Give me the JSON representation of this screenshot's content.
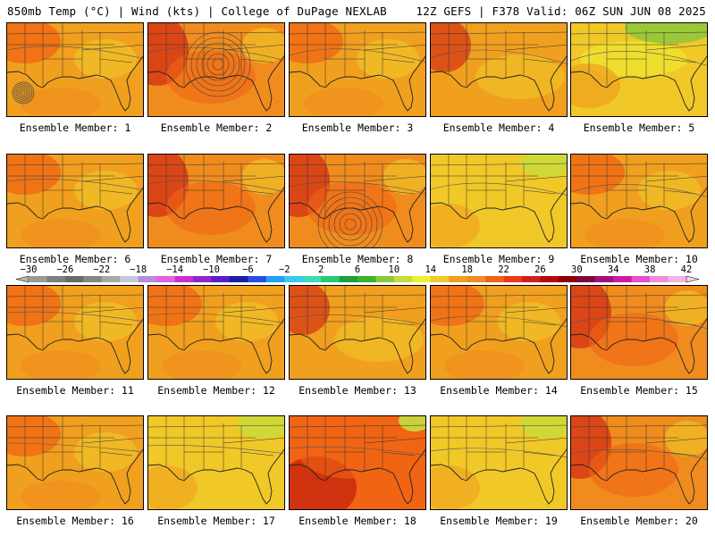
{
  "header": {
    "left": "850mb Temp (°C) | Wind (kts) | College of DuPage NEXLAB",
    "right": "12Z GEFS | F378 Valid: 06Z SUN JUN 08 2025"
  },
  "panels": [
    {
      "caption": "Ensemble Member: 1",
      "variant": "a",
      "hurricane": true
    },
    {
      "caption": "Ensemble Member: 2",
      "variant": "b",
      "low": true
    },
    {
      "caption": "Ensemble Member: 3",
      "variant": "a"
    },
    {
      "caption": "Ensemble Member: 4",
      "variant": "c"
    },
    {
      "caption": "Ensemble Member: 5",
      "variant": "cool"
    },
    {
      "caption": "Ensemble Member: 6",
      "variant": "a"
    },
    {
      "caption": "Ensemble Member: 7",
      "variant": "b"
    },
    {
      "caption": "Ensemble Member: 8",
      "variant": "b",
      "low": true
    },
    {
      "caption": "Ensemble Member: 9",
      "variant": "mild"
    },
    {
      "caption": "Ensemble Member: 10",
      "variant": "a"
    },
    {
      "caption": "Ensemble Member: 11",
      "variant": "a"
    },
    {
      "caption": "Ensemble Member: 12",
      "variant": "a"
    },
    {
      "caption": "Ensemble Member: 13",
      "variant": "c"
    },
    {
      "caption": "Ensemble Member: 14",
      "variant": "a"
    },
    {
      "caption": "Ensemble Member: 15",
      "variant": "b"
    },
    {
      "caption": "Ensemble Member: 16",
      "variant": "a"
    },
    {
      "caption": "Ensemble Member: 17",
      "variant": "mild"
    },
    {
      "caption": "Ensemble Member: 18",
      "variant": "hot"
    },
    {
      "caption": "Ensemble Member: 19",
      "variant": "mild"
    },
    {
      "caption": "Ensemble Member: 20",
      "variant": "b"
    }
  ],
  "colorbar": {
    "labels": [
      "−30",
      "−26",
      "−22",
      "−18",
      "−14",
      "−10",
      "−6",
      "−2",
      "2",
      "6",
      "10",
      "14",
      "18",
      "22",
      "26",
      "30",
      "34",
      "38",
      "42"
    ],
    "colors": [
      "#9a9a9a",
      "#7f7f7f",
      "#6a6a6a",
      "#868686",
      "#a8a8a8",
      "#c8c8dc",
      "#b48cd8",
      "#dc64dc",
      "#c832c8",
      "#8c28c8",
      "#5a1ec8",
      "#1e1ea0",
      "#2850dc",
      "#28a0f0",
      "#3cc8f0",
      "#3cdcb4",
      "#28c878",
      "#1ea03c",
      "#3cb428",
      "#8cc83c",
      "#c8dc3c",
      "#f0f032",
      "#f0c828",
      "#f0a01e",
      "#f08c1e",
      "#f06414",
      "#e83c14",
      "#d21e1e",
      "#b40a0a",
      "#8c0000",
      "#7a0a3c",
      "#a0147a",
      "#c81ea0",
      "#e650c8",
      "#f08cdc",
      "#f0b4e6"
    ]
  },
  "palette": {
    "hot": "#d22814",
    "warm": "#f06414",
    "orange": "#f08c1e",
    "amber": "#f0a01e",
    "gold": "#f0c828",
    "yellow": "#f0f032",
    "lime": "#c8dc3c",
    "green": "#8cc83c"
  }
}
